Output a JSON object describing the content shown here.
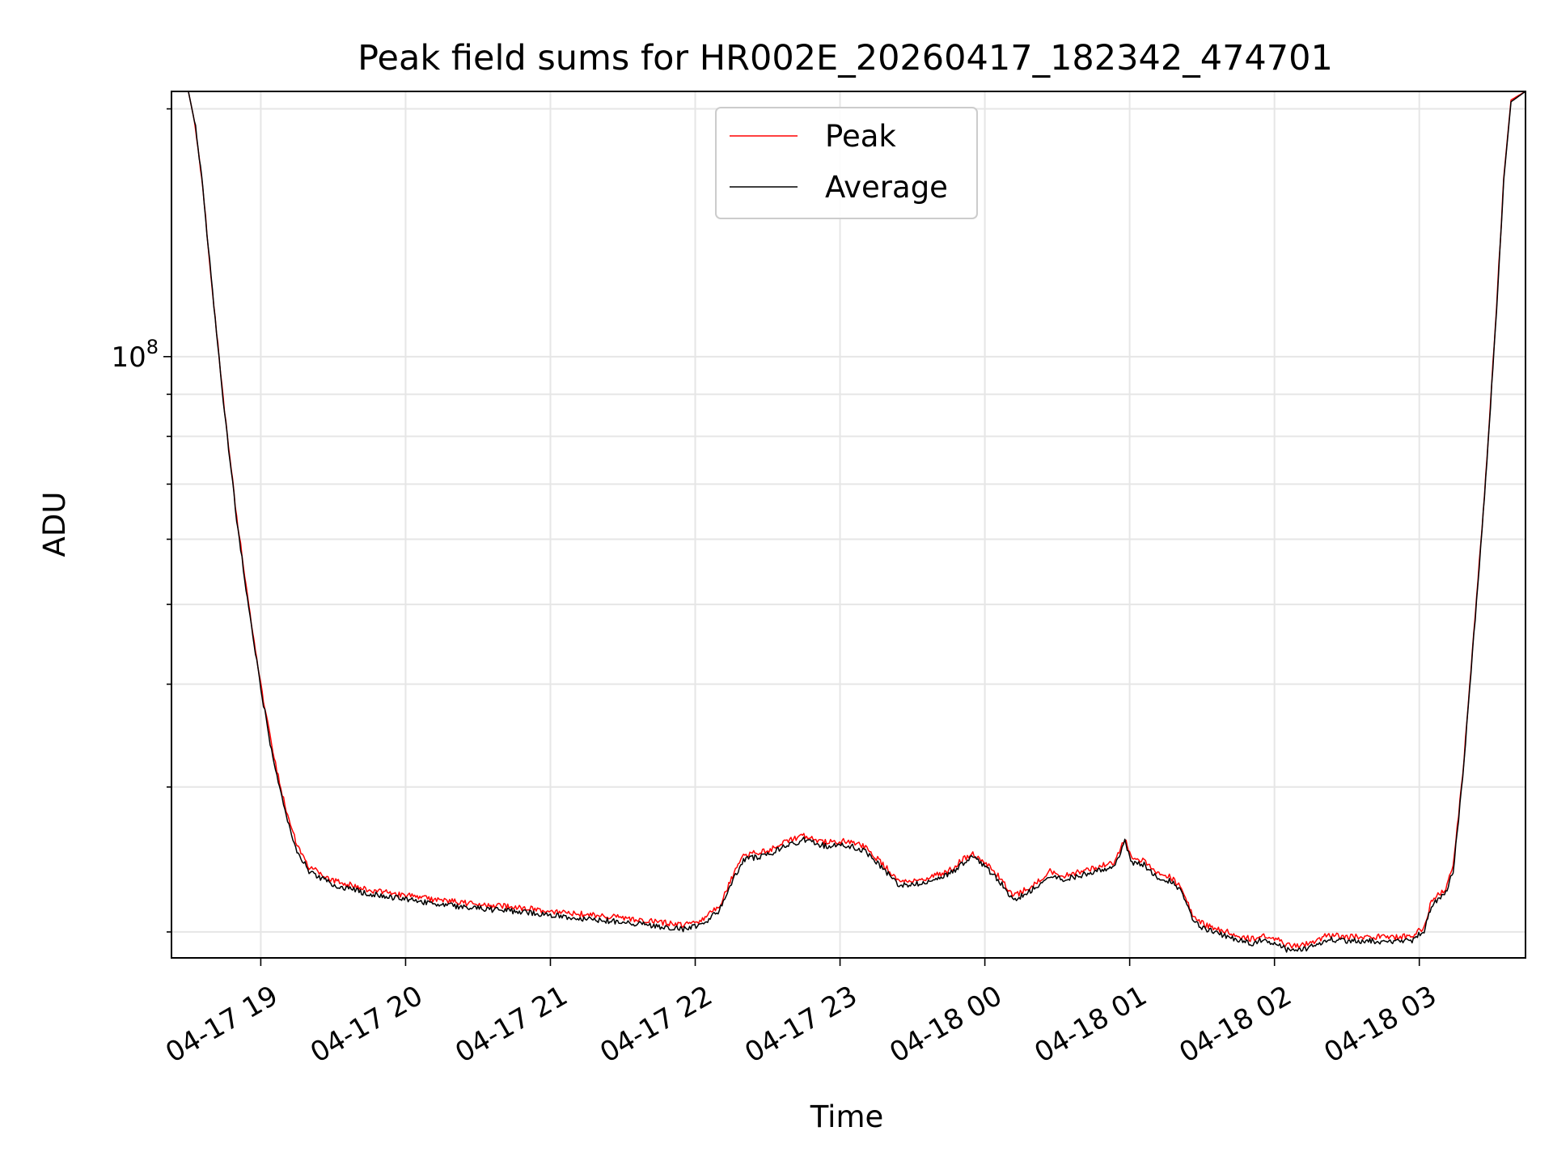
{
  "chart_data": {
    "type": "line",
    "title": "Peak field sums for HR002E_20260417_182342_474701",
    "xlabel": "Time",
    "ylabel": "ADU",
    "yscale": "log",
    "grid": true,
    "legend_placement": "upper center",
    "xlim": [
      "2026-04-17 18:23",
      "2026-04-18 03:44"
    ],
    "ylim": [
      18600000,
      210000000
    ],
    "x_ticks": [
      {
        "t": "2026-04-17 19:00",
        "label": "04-17 19"
      },
      {
        "t": "2026-04-17 20:00",
        "label": "04-17 20"
      },
      {
        "t": "2026-04-17 21:00",
        "label": "04-17 21"
      },
      {
        "t": "2026-04-17 22:00",
        "label": "04-17 22"
      },
      {
        "t": "2026-04-17 23:00",
        "label": "04-17 23"
      },
      {
        "t": "2026-04-18 00:00",
        "label": "04-18 00"
      },
      {
        "t": "2026-04-18 01:00",
        "label": "04-18 01"
      },
      {
        "t": "2026-04-18 02:00",
        "label": "04-18 02"
      },
      {
        "t": "2026-04-18 03:00",
        "label": "04-18 03"
      }
    ],
    "y_major_ticks": [
      {
        "v": 100000000,
        "base": "10",
        "exp": "8"
      }
    ],
    "series": [
      {
        "name": "Peak",
        "color": "#ff0000",
        "points": [
          [
            "2026-04-17 18:23",
            210000000
          ],
          [
            "2026-04-17 18:30",
            210000000
          ],
          [
            "2026-04-17 18:33",
            190000000
          ],
          [
            "2026-04-17 18:36",
            160000000
          ],
          [
            "2026-04-17 18:40",
            120000000
          ],
          [
            "2026-04-17 18:45",
            86000000
          ],
          [
            "2026-04-17 18:50",
            64000000
          ],
          [
            "2026-04-17 18:55",
            50000000
          ],
          [
            "2026-04-17 19:00",
            40000000
          ],
          [
            "2026-04-17 19:05",
            33000000
          ],
          [
            "2026-04-17 19:10",
            28500000
          ],
          [
            "2026-04-17 19:15",
            25500000
          ],
          [
            "2026-04-17 19:20",
            24000000
          ],
          [
            "2026-04-17 19:30",
            23100000
          ],
          [
            "2026-04-17 19:45",
            22500000
          ],
          [
            "2026-04-17 20:00",
            22150000
          ],
          [
            "2026-04-17 20:15",
            21850000
          ],
          [
            "2026-04-17 20:30",
            21600000
          ],
          [
            "2026-04-17 20:45",
            21450000
          ],
          [
            "2026-04-17 21:00",
            21200000
          ],
          [
            "2026-04-17 21:15",
            21000000
          ],
          [
            "2026-04-17 21:30",
            20800000
          ],
          [
            "2026-04-17 21:45",
            20550000
          ],
          [
            "2026-04-17 21:55",
            20400000
          ],
          [
            "2026-04-17 22:03",
            20700000
          ],
          [
            "2026-04-17 22:10",
            21500000
          ],
          [
            "2026-04-17 22:15",
            23200000
          ],
          [
            "2026-04-17 22:20",
            24800000
          ],
          [
            "2026-04-17 22:30",
            25100000
          ],
          [
            "2026-04-17 22:37",
            25700000
          ],
          [
            "2026-04-17 22:45",
            26200000
          ],
          [
            "2026-04-17 22:50",
            25900000
          ],
          [
            "2026-04-17 22:55",
            25700000
          ],
          [
            "2026-04-17 23:03",
            25800000
          ],
          [
            "2026-04-17 23:10",
            25400000
          ],
          [
            "2026-04-17 23:15",
            24600000
          ],
          [
            "2026-04-17 23:20",
            23800000
          ],
          [
            "2026-04-17 23:25",
            23000000
          ],
          [
            "2026-04-17 23:35",
            23200000
          ],
          [
            "2026-04-17 23:45",
            23700000
          ],
          [
            "2026-04-17 23:50",
            24400000
          ],
          [
            "2026-04-17 23:55",
            24900000
          ],
          [
            "2026-04-18 00:00",
            24300000
          ],
          [
            "2026-04-18 00:06",
            23300000
          ],
          [
            "2026-04-18 00:12",
            22100000
          ],
          [
            "2026-04-18 00:20",
            22800000
          ],
          [
            "2026-04-18 00:27",
            23700000
          ],
          [
            "2026-04-18 00:33",
            23400000
          ],
          [
            "2026-04-18 00:40",
            23700000
          ],
          [
            "2026-04-18 00:47",
            24000000
          ],
          [
            "2026-04-18 00:54",
            24300000
          ],
          [
            "2026-04-18 00:58",
            26000000
          ],
          [
            "2026-04-18 01:01",
            24500000
          ],
          [
            "2026-04-18 01:06",
            24400000
          ],
          [
            "2026-04-18 01:11",
            23600000
          ],
          [
            "2026-04-18 01:17",
            23300000
          ],
          [
            "2026-04-18 01:22",
            22500000
          ],
          [
            "2026-04-18 01:26",
            21000000
          ],
          [
            "2026-04-18 01:31",
            20400000
          ],
          [
            "2026-04-18 01:41",
            20000000
          ],
          [
            "2026-04-18 01:50",
            19600000
          ],
          [
            "2026-04-18 01:55",
            19800000
          ],
          [
            "2026-04-18 02:00",
            19650000
          ],
          [
            "2026-04-18 02:05",
            19300000
          ],
          [
            "2026-04-18 02:10",
            19200000
          ],
          [
            "2026-04-18 02:17",
            19500000
          ],
          [
            "2026-04-18 02:22",
            19850000
          ],
          [
            "2026-04-18 02:29",
            19750000
          ],
          [
            "2026-04-18 02:40",
            19750000
          ],
          [
            "2026-04-18 02:50",
            19700000
          ],
          [
            "2026-04-18 02:57",
            19800000
          ],
          [
            "2026-04-18 03:02",
            20300000
          ],
          [
            "2026-04-18 03:05",
            21800000
          ],
          [
            "2026-04-18 03:11",
            22600000
          ],
          [
            "2026-04-18 03:14",
            24000000
          ],
          [
            "2026-04-18 03:18",
            31000000
          ],
          [
            "2026-04-18 03:22",
            44000000
          ],
          [
            "2026-04-18 03:26",
            62000000
          ],
          [
            "2026-04-18 03:29",
            83000000
          ],
          [
            "2026-04-18 03:32",
            115000000
          ],
          [
            "2026-04-18 03:35",
            165000000
          ],
          [
            "2026-04-18 03:38",
            205000000
          ],
          [
            "2026-04-18 03:44",
            210000000
          ]
        ]
      },
      {
        "name": "Average",
        "color": "#000000",
        "points": [
          [
            "2026-04-17 18:23",
            210000000
          ],
          [
            "2026-04-17 18:30",
            210000000
          ],
          [
            "2026-04-17 18:33",
            190000000
          ],
          [
            "2026-04-17 18:36",
            160000000
          ],
          [
            "2026-04-17 18:40",
            120000000
          ],
          [
            "2026-04-17 18:45",
            85500000
          ],
          [
            "2026-04-17 18:50",
            63500000
          ],
          [
            "2026-04-17 18:55",
            49500000
          ],
          [
            "2026-04-17 19:00",
            39500000
          ],
          [
            "2026-04-17 19:05",
            32500000
          ],
          [
            "2026-04-17 19:10",
            28000000
          ],
          [
            "2026-04-17 19:15",
            25100000
          ],
          [
            "2026-04-17 19:20",
            23700000
          ],
          [
            "2026-04-17 19:30",
            22800000
          ],
          [
            "2026-04-17 19:45",
            22250000
          ],
          [
            "2026-04-17 20:00",
            21900000
          ],
          [
            "2026-04-17 20:15",
            21600000
          ],
          [
            "2026-04-17 20:30",
            21350000
          ],
          [
            "2026-04-17 20:45",
            21200000
          ],
          [
            "2026-04-17 21:00",
            20950000
          ],
          [
            "2026-04-17 21:15",
            20750000
          ],
          [
            "2026-04-17 21:30",
            20550000
          ],
          [
            "2026-04-17 21:45",
            20300000
          ],
          [
            "2026-04-17 21:55",
            20150000
          ],
          [
            "2026-04-17 22:03",
            20450000
          ],
          [
            "2026-04-17 22:10",
            21250000
          ],
          [
            "2026-04-17 22:15",
            22900000
          ],
          [
            "2026-04-17 22:20",
            24500000
          ],
          [
            "2026-04-17 22:30",
            24800000
          ],
          [
            "2026-04-17 22:37",
            25400000
          ],
          [
            "2026-04-17 22:45",
            25900000
          ],
          [
            "2026-04-17 22:50",
            25600000
          ],
          [
            "2026-04-17 22:55",
            25400000
          ],
          [
            "2026-04-17 23:03",
            25500000
          ],
          [
            "2026-04-17 23:10",
            25100000
          ],
          [
            "2026-04-17 23:15",
            24300000
          ],
          [
            "2026-04-17 23:20",
            23500000
          ],
          [
            "2026-04-17 23:25",
            22750000
          ],
          [
            "2026-04-17 23:35",
            22950000
          ],
          [
            "2026-04-17 23:45",
            23450000
          ],
          [
            "2026-04-17 23:50",
            24100000
          ],
          [
            "2026-04-17 23:55",
            24650000
          ],
          [
            "2026-04-18 00:00",
            24050000
          ],
          [
            "2026-04-18 00:06",
            23050000
          ],
          [
            "2026-04-18 00:12",
            21850000
          ],
          [
            "2026-04-18 00:20",
            22550000
          ],
          [
            "2026-04-18 00:27",
            23450000
          ],
          [
            "2026-04-18 00:33",
            23150000
          ],
          [
            "2026-04-18 00:40",
            23450000
          ],
          [
            "2026-04-18 00:47",
            23750000
          ],
          [
            "2026-04-18 00:54",
            24050000
          ],
          [
            "2026-04-18 00:58",
            25800000
          ],
          [
            "2026-04-18 01:01",
            24250000
          ],
          [
            "2026-04-18 01:06",
            24150000
          ],
          [
            "2026-04-18 01:11",
            23350000
          ],
          [
            "2026-04-18 01:17",
            23050000
          ],
          [
            "2026-04-18 01:22",
            22250000
          ],
          [
            "2026-04-18 01:26",
            20750000
          ],
          [
            "2026-04-18 01:31",
            20150000
          ],
          [
            "2026-04-18 01:41",
            19750000
          ],
          [
            "2026-04-18 01:50",
            19350000
          ],
          [
            "2026-04-18 01:55",
            19550000
          ],
          [
            "2026-04-18 02:00",
            19400000
          ],
          [
            "2026-04-18 02:05",
            19050000
          ],
          [
            "2026-04-18 02:10",
            18950000
          ],
          [
            "2026-04-18 02:17",
            19250000
          ],
          [
            "2026-04-18 02:22",
            19600000
          ],
          [
            "2026-04-18 02:29",
            19500000
          ],
          [
            "2026-04-18 02:40",
            19500000
          ],
          [
            "2026-04-18 02:50",
            19450000
          ],
          [
            "2026-04-18 02:57",
            19550000
          ],
          [
            "2026-04-18 03:02",
            20050000
          ],
          [
            "2026-04-18 03:05",
            21550000
          ],
          [
            "2026-04-18 03:11",
            22350000
          ],
          [
            "2026-04-18 03:14",
            23700000
          ],
          [
            "2026-04-18 03:18",
            30700000
          ],
          [
            "2026-04-18 03:22",
            43600000
          ],
          [
            "2026-04-18 03:26",
            61500000
          ],
          [
            "2026-04-18 03:29",
            82500000
          ],
          [
            "2026-04-18 03:32",
            114000000
          ],
          [
            "2026-04-18 03:35",
            164000000
          ],
          [
            "2026-04-18 03:38",
            204000000
          ],
          [
            "2026-04-18 03:44",
            210000000
          ]
        ]
      }
    ]
  }
}
